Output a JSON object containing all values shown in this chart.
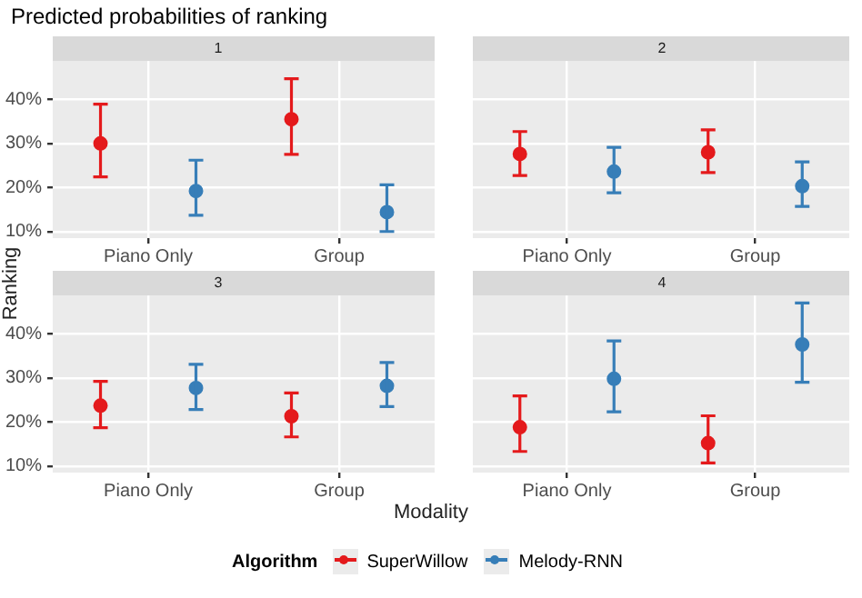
{
  "chart_data": [
    {
      "type": "scatter",
      "title": "1",
      "annotations": [
        "Predicted probabilities of ranking"
      ],
      "xlabel": "Modality",
      "ylabel": "Ranking",
      "legend_title": "Algorithm",
      "legend": "bottom",
      "marker": "circle",
      "grid": true,
      "categories": [
        "Piano Only",
        "Group"
      ],
      "ylim": [
        8.5,
        48.7
      ],
      "yticks": [
        {
          "value": 10,
          "label": "10%"
        },
        {
          "value": 20,
          "label": "20%"
        },
        {
          "value": 30,
          "label": "30%"
        },
        {
          "value": 40,
          "label": "40%"
        }
      ],
      "series": [
        {
          "name": "SuperWillow",
          "color": "#e41a1c",
          "values": [
            30.0,
            35.5
          ],
          "errors": [
            [
              22.4,
              38.9
            ],
            [
              27.5,
              44.7
            ]
          ]
        },
        {
          "name": "Melody-RNN",
          "color": "#377eb8",
          "values": [
            19.2,
            14.4
          ],
          "errors": [
            [
              13.7,
              26.2
            ],
            [
              10.0,
              20.6
            ]
          ]
        }
      ]
    },
    {
      "type": "scatter",
      "title": "2",
      "marker": "circle",
      "grid": true,
      "tick_labels": "x",
      "categories": [
        "Piano Only",
        "Group"
      ],
      "ylim": [
        8.5,
        48.7
      ],
      "yticks": [
        {
          "value": 10,
          "label": null
        },
        {
          "value": 20,
          "label": null
        },
        {
          "value": 30,
          "label": null
        },
        {
          "value": 40,
          "label": null
        }
      ],
      "series": [
        {
          "color": "#e41a1c",
          "values": [
            27.6,
            28.0
          ],
          "errors": [
            [
              22.7,
              32.7
            ],
            [
              23.4,
              33.1
            ]
          ]
        },
        {
          "color": "#377eb8",
          "values": [
            23.6,
            20.3
          ],
          "errors": [
            [
              18.8,
              29.1
            ],
            [
              15.7,
              25.8
            ]
          ]
        }
      ]
    },
    {
      "type": "scatter",
      "title": "3",
      "marker": "circle",
      "grid": true,
      "categories": [
        "Piano Only",
        "Group"
      ],
      "ylim": [
        8.5,
        48.7
      ],
      "yticks": [
        {
          "value": 10,
          "label": "10%"
        },
        {
          "value": 20,
          "label": "20%"
        },
        {
          "value": 30,
          "label": "30%"
        },
        {
          "value": 40,
          "label": "40%"
        }
      ],
      "series": [
        {
          "color": "#e41a1c",
          "values": [
            23.7,
            21.3
          ],
          "errors": [
            [
              18.7,
              29.2
            ],
            [
              16.6,
              26.6
            ]
          ]
        },
        {
          "color": "#377eb8",
          "values": [
            27.7,
            28.2
          ],
          "errors": [
            [
              22.8,
              33.1
            ],
            [
              23.5,
              33.5
            ]
          ]
        }
      ]
    },
    {
      "type": "scatter",
      "title": "4",
      "marker": "circle",
      "grid": true,
      "tick_labels": "x",
      "categories": [
        "Piano Only",
        "Group"
      ],
      "ylim": [
        8.5,
        48.7
      ],
      "yticks": [
        {
          "value": 10,
          "label": null
        },
        {
          "value": 20,
          "label": null
        },
        {
          "value": 30,
          "label": null
        },
        {
          "value": 40,
          "label": null
        }
      ],
      "series": [
        {
          "color": "#e41a1c",
          "values": [
            18.8,
            15.2
          ],
          "errors": [
            [
              13.3,
              25.9
            ],
            [
              10.7,
              21.4
            ]
          ]
        },
        {
          "color": "#377eb8",
          "values": [
            29.8,
            37.6
          ],
          "errors": [
            [
              22.3,
              38.4
            ],
            [
              29.0,
              47.0
            ]
          ]
        }
      ]
    }
  ]
}
